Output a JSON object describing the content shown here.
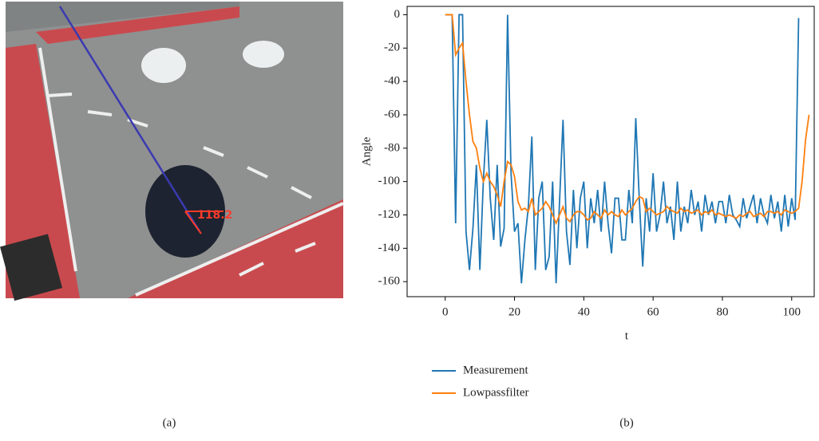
{
  "image": {
    "annotation": "118.2",
    "caption": "(a)"
  },
  "chart_data": {
    "type": "line",
    "caption": "(b)",
    "xlabel": "t",
    "ylabel": "Angle",
    "x": [
      0,
      1,
      2,
      3,
      4,
      5,
      6,
      7,
      8,
      9,
      10,
      11,
      12,
      13,
      14,
      15,
      16,
      17,
      18,
      19,
      20,
      21,
      22,
      23,
      24,
      25,
      26,
      27,
      28,
      29,
      30,
      31,
      32,
      33,
      34,
      35,
      36,
      37,
      38,
      39,
      40,
      41,
      42,
      43,
      44,
      45,
      46,
      47,
      48,
      49,
      50,
      51,
      52,
      53,
      54,
      55,
      56,
      57,
      58,
      59,
      60,
      61,
      62,
      63,
      64,
      65,
      66,
      67,
      68,
      69,
      70,
      71,
      72,
      73,
      74,
      75,
      76,
      77,
      78,
      79,
      80,
      81,
      82,
      83,
      84,
      85,
      86,
      87,
      88,
      89,
      90,
      91,
      92,
      93,
      94,
      95,
      96,
      97,
      98,
      99,
      100,
      101,
      102,
      103,
      104,
      105
    ],
    "series": [
      {
        "name": "Measurement",
        "color": "#1f77b4",
        "values": [
          0,
          0,
          0,
          -125,
          0,
          0,
          -130,
          -153,
          -128,
          -90,
          -153,
          -100,
          -63,
          -110,
          -135,
          -90,
          -139,
          -128,
          0,
          -95,
          -130,
          -125,
          -161,
          -135,
          -115,
          -73,
          -153,
          -110,
          -100,
          -153,
          -145,
          -100,
          -161,
          -112,
          -63,
          -130,
          -150,
          -105,
          -140,
          -110,
          -100,
          -140,
          -110,
          -125,
          -105,
          -130,
          -100,
          -125,
          -143,
          -110,
          -110,
          -135,
          -135,
          -105,
          -125,
          -62,
          -110,
          -151,
          -110,
          -130,
          -95,
          -130,
          -120,
          -100,
          -125,
          -115,
          -135,
          -100,
          -130,
          -115,
          -125,
          -105,
          -120,
          -112,
          -130,
          -108,
          -120,
          -112,
          -125,
          -112,
          -112,
          -125,
          -108,
          -120,
          -123,
          -127,
          -110,
          -122,
          -115,
          -108,
          -125,
          -110,
          -120,
          -125,
          -108,
          -122,
          -112,
          -130,
          -108,
          -127,
          -110,
          -123,
          -2,
          null,
          null,
          null
        ]
      },
      {
        "name": "Lowpassfilter",
        "color": "#ff7f0e",
        "values": [
          0,
          0,
          0,
          -24,
          -20,
          -17,
          -40,
          -60,
          -76,
          -80,
          -92,
          -100,
          -95,
          -100,
          -103,
          -108,
          -115,
          -100,
          -88,
          -90,
          -97,
          -112,
          -117,
          -116,
          -118,
          -110,
          -120,
          -118,
          -116,
          -112,
          -115,
          -120,
          -125,
          -120,
          -115,
          -122,
          -124,
          -120,
          -118,
          -118,
          -120,
          -123,
          -122,
          -118,
          -120,
          -122,
          -117,
          -120,
          -118,
          -120,
          -121,
          -117,
          -120,
          -118,
          -116,
          -112,
          -109,
          -110,
          -118,
          -116,
          -118,
          -120,
          -119,
          -118,
          -115,
          -117,
          -118,
          -119,
          -116,
          -118,
          -117,
          -119,
          -118,
          -117,
          -120,
          -118,
          -119,
          -117,
          -120,
          -119,
          -120,
          -121,
          -120,
          -121,
          -122,
          -120,
          -121,
          -119,
          -118,
          -121,
          -120,
          -119,
          -121,
          -118,
          -118,
          -119,
          -118,
          -120,
          -117,
          -118,
          -119,
          -118,
          -116,
          -100,
          -75,
          -60
        ]
      }
    ],
    "xlim": [
      -11,
      106.5
    ],
    "ylim": [
      -169,
      5
    ],
    "xticks": [
      0,
      20,
      40,
      60,
      80,
      100
    ],
    "yticks": [
      0,
      -20,
      -40,
      -60,
      -80,
      -100,
      -120,
      -140,
      -160
    ],
    "legend": "below",
    "grid": false
  }
}
